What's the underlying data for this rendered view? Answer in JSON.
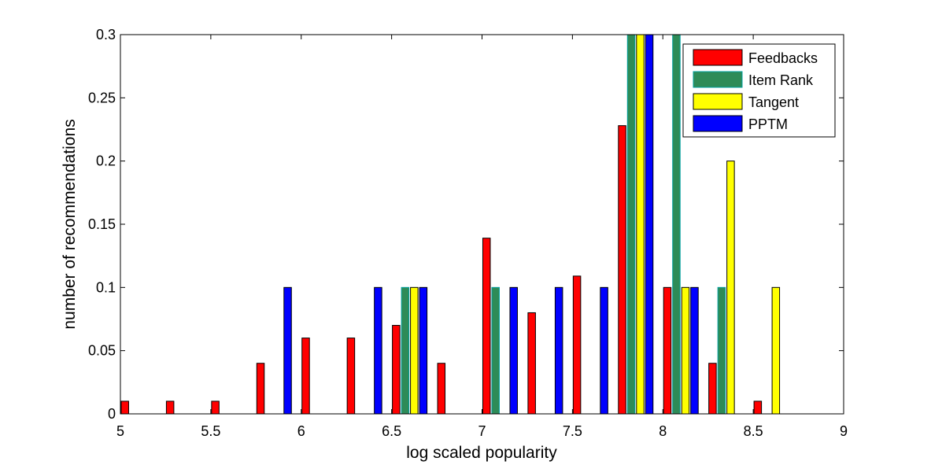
{
  "chart_data": {
    "type": "bar",
    "title": "",
    "xlabel": "log scaled popularity",
    "ylabel": "number of recommendations",
    "xlim": [
      5,
      9
    ],
    "ylim": [
      0,
      0.3
    ],
    "xticks": [
      "5",
      "5.5",
      "6",
      "6.5",
      "7",
      "7.5",
      "8",
      "8.5",
      "9"
    ],
    "yticks": [
      "0",
      "0.05",
      "0.1",
      "0.15",
      "0.2",
      "0.25",
      "0.3"
    ],
    "grid": false,
    "legend_position": "top-right",
    "bin_centers": [
      5.1,
      5.35,
      5.6,
      5.85,
      6.1,
      6.35,
      6.6,
      6.85,
      7.1,
      7.35,
      7.6,
      7.85,
      8.1,
      8.35,
      8.6,
      8.85
    ],
    "series": [
      {
        "name": "Feedbacks",
        "color": "#ff0000",
        "values": [
          0.01,
          0.01,
          0.01,
          0.04,
          0.06,
          0.06,
          0.07,
          0.04,
          0.139,
          0.08,
          0.109,
          0.228,
          0.1,
          0.04,
          0.01,
          0
        ]
      },
      {
        "name": "Item Rank",
        "color": "#2e8b57",
        "values": [
          0,
          0,
          0,
          0,
          0,
          0,
          0.1,
          0,
          0.1,
          0,
          0,
          0.3,
          0.3,
          0.1,
          0,
          0
        ]
      },
      {
        "name": "Tangent",
        "color": "#ffff00",
        "values": [
          0,
          0,
          0,
          0,
          0,
          0,
          0.1,
          0,
          0,
          0,
          0,
          0.3,
          0.1,
          0.2,
          0.1,
          0
        ]
      },
      {
        "name": "PPTM",
        "color": "#0000ff",
        "values": [
          0,
          0,
          0,
          0.1,
          0,
          0.1,
          0.1,
          0,
          0.1,
          0.1,
          0.1,
          0.3,
          0.1,
          0,
          0,
          0
        ]
      }
    ]
  }
}
